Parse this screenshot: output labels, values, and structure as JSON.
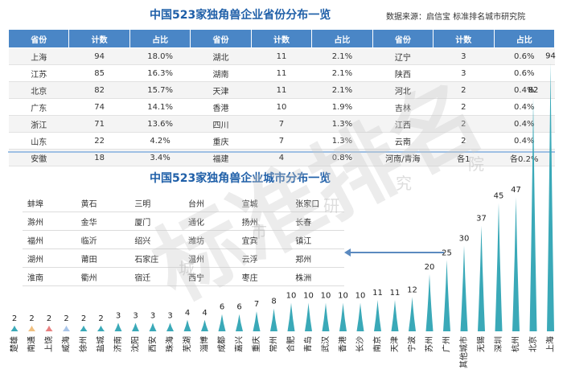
{
  "header": {
    "title_province": "中国523家独角兽企业省份分布一览",
    "source": "数据来源：启信宝 标准排名城市研究院",
    "title_city": "中国523家独角兽企业城市分布一览"
  },
  "watermark": {
    "brand": "标准排名",
    "sub": [
      "城",
      "市",
      "研",
      "究",
      "院"
    ]
  },
  "province_table": {
    "headers": [
      "省份",
      "计数",
      "占比",
      "省份",
      "计数",
      "占比",
      "省份",
      "计数",
      "占比"
    ],
    "rows": [
      [
        "上海",
        "94",
        "18.0%",
        "湖北",
        "11",
        "2.1%",
        "辽宁",
        "3",
        "0.6%"
      ],
      [
        "江苏",
        "85",
        "16.3%",
        "湖南",
        "11",
        "2.1%",
        "陕西",
        "3",
        "0.6%"
      ],
      [
        "北京",
        "82",
        "15.7%",
        "天津",
        "11",
        "2.1%",
        "河北",
        "2",
        "0.4%"
      ],
      [
        "广东",
        "74",
        "14.1%",
        "香港",
        "10",
        "1.9%",
        "吉林",
        "2",
        "0.4%"
      ],
      [
        "浙江",
        "71",
        "13.6%",
        "四川",
        "7",
        "1.3%",
        "江西",
        "2",
        "0.4%"
      ],
      [
        "山东",
        "22",
        "4.2%",
        "重庆",
        "7",
        "1.3%",
        "云南",
        "2",
        "0.4%"
      ],
      [
        "安徽",
        "18",
        "3.4%",
        "福建",
        "4",
        "0.8%",
        "河南/青海",
        "各1",
        "各0.2%"
      ]
    ]
  },
  "city_table": {
    "rows": [
      [
        "蚌埠",
        "黄石",
        "三明",
        "台州",
        "宣城",
        "张家口"
      ],
      [
        "滁州",
        "金华",
        "厦门",
        "通化",
        "扬州",
        "长春"
      ],
      [
        "福州",
        "临沂",
        "绍兴",
        "潍坊",
        "宜宾",
        "镇江"
      ],
      [
        "湖州",
        "莆田",
        "石家庄",
        "温州",
        "云浮",
        "郑州"
      ],
      [
        "淮南",
        "衢州",
        "宿迁",
        "西宁",
        "枣庄",
        "株洲"
      ]
    ]
  },
  "chart_data": {
    "type": "bar",
    "categories": [
      "楚雄",
      "南通",
      "上饶",
      "威海",
      "徐州",
      "盐城",
      "济南",
      "沈阳",
      "西安",
      "珠海",
      "芜湖",
      "淄博",
      "成都",
      "嘉兴",
      "重庆",
      "常州",
      "合肥",
      "青岛",
      "武汉",
      "香港",
      "长沙",
      "南京",
      "天津",
      "宁波",
      "苏州",
      "广州",
      "其他城市",
      "无锡",
      "深圳",
      "杭州",
      "北京",
      "上海"
    ],
    "values": [
      2,
      2,
      2,
      2,
      2,
      2,
      3,
      3,
      3,
      3,
      4,
      4,
      6,
      6,
      7,
      8,
      10,
      10,
      10,
      10,
      10,
      11,
      11,
      12,
      20,
      25,
      30,
      37,
      45,
      47,
      82,
      94
    ],
    "bar_color": "#3aa9b8",
    "highlight_colors": {
      "南通": "#f0c080",
      "上饶": "#e88080",
      "威海": "#a8c4e8"
    }
  }
}
